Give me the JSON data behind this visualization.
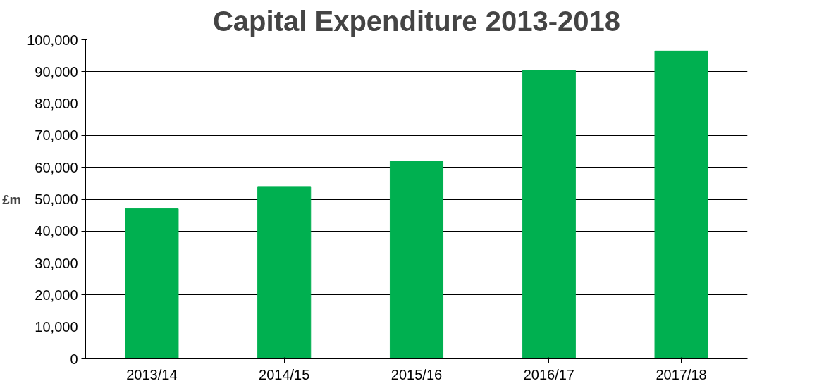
{
  "chart_data": {
    "type": "bar",
    "title": "Capital Expenditure 2013-2018",
    "ylabel": "£m",
    "categories": [
      "2013/14",
      "2014/15",
      "2015/16",
      "2016/17",
      "2017/18"
    ],
    "values": [
      47000,
      54000,
      62000,
      90500,
      96500
    ],
    "color": "#00b050",
    "ylim": [
      0,
      100000
    ],
    "yticks": [
      0,
      {
        "value": 10000,
        "label": "10,000"
      },
      {
        "value": 20000,
        "label": "20,000"
      },
      {
        "value": 30000,
        "label": "30,000"
      },
      {
        "value": 40000,
        "label": "40,000"
      },
      {
        "value": 50000,
        "label": "50,000"
      },
      {
        "value": 60000,
        "label": "60,000"
      },
      {
        "value": 70000,
        "label": "70,000"
      },
      {
        "value": 80000,
        "label": "80,000"
      },
      {
        "value": 90000,
        "label": "90,000"
      },
      {
        "value": 100000,
        "label": "100,000"
      }
    ],
    "grid": "y"
  }
}
